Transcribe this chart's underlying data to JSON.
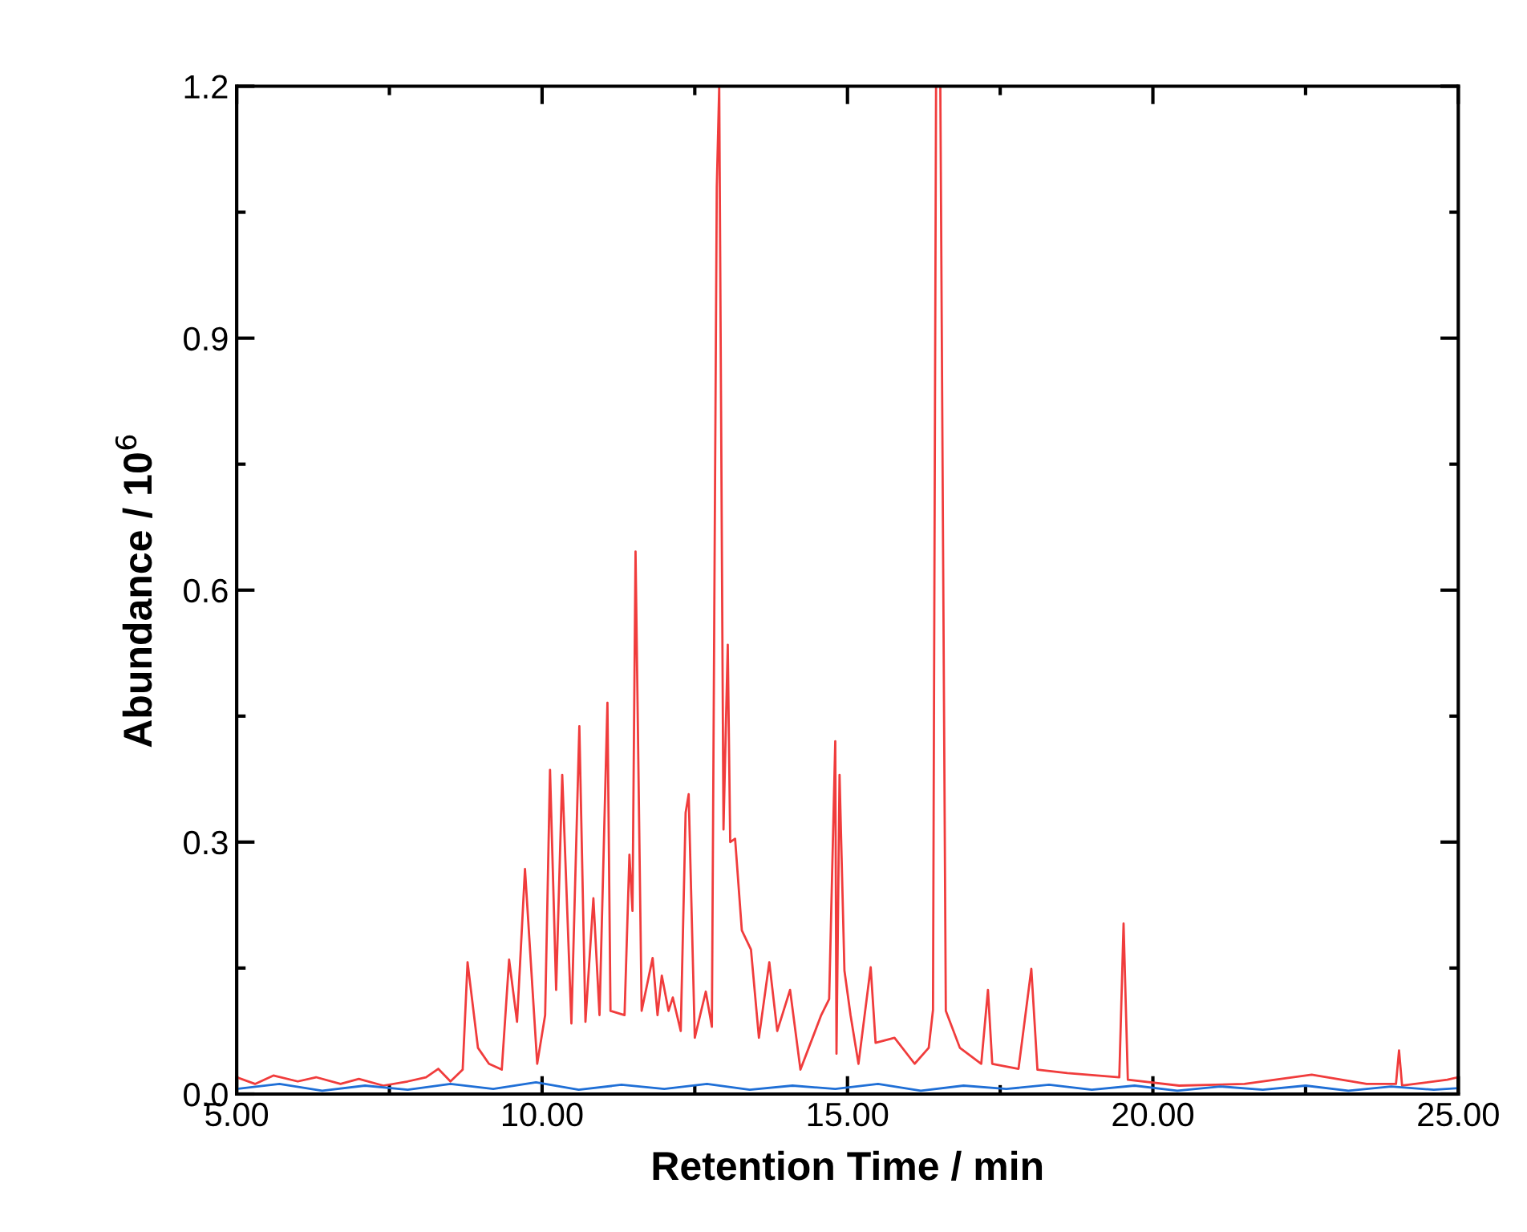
{
  "chart_data": {
    "type": "line",
    "xlabel": "Retention Time / min",
    "ylabel": "Abundance / 10$^{6}$",
    "xlim": [
      5,
      25
    ],
    "ylim": [
      0,
      1.2
    ],
    "xticks": [
      {
        "value": 5,
        "label": "5.00"
      },
      {
        "value": 7.5,
        "label": null
      },
      {
        "value": 10,
        "label": "10.00"
      },
      {
        "value": 12.5,
        "label": null
      },
      {
        "value": 15,
        "label": "15.00"
      },
      {
        "value": 17.5,
        "label": null
      },
      {
        "value": 20,
        "label": "20.00"
      },
      {
        "value": 22.5,
        "label": null
      },
      {
        "value": 25,
        "label": "25.00"
      }
    ],
    "yticks": [
      {
        "value": 0,
        "label": "0.0"
      },
      {
        "value": 0.15,
        "label": null
      },
      0.3,
      {
        "value": 0.45,
        "label": null
      },
      0.6,
      {
        "value": 0.75,
        "label": null
      },
      0.9,
      {
        "value": 1.05,
        "label": null
      },
      1.2
    ],
    "marker": "none",
    "line_style": "solid",
    "series": [
      {
        "color": "#f03c3c",
        "x": [
          5.0,
          5.3,
          5.6,
          6.0,
          6.3,
          6.7,
          7.0,
          7.4,
          7.8,
          8.1,
          8.3,
          8.5,
          8.7,
          8.78,
          8.95,
          9.13,
          9.34,
          9.46,
          9.59,
          9.72,
          9.92,
          10.05,
          10.13,
          10.23,
          10.33,
          10.48,
          10.61,
          10.71,
          10.84,
          10.94,
          11.07,
          11.12,
          11.35,
          11.43,
          11.48,
          11.53,
          11.63,
          11.81,
          11.89,
          11.96,
          12.07,
          12.14,
          12.27,
          12.35,
          12.4,
          12.5,
          12.68,
          12.78,
          12.86,
          12.9,
          12.97,
          13.04,
          13.08,
          13.16,
          13.27,
          13.42,
          13.55,
          13.72,
          13.85,
          14.06,
          14.23,
          14.57,
          14.7,
          14.8,
          14.82,
          14.87,
          14.95,
          15.05,
          15.18,
          15.38,
          15.46,
          15.77,
          16.1,
          16.33,
          16.4,
          16.45,
          16.52,
          16.61,
          16.84,
          17.19,
          17.3,
          17.37,
          17.8,
          18.01,
          18.11,
          18.6,
          19.45,
          19.52,
          19.59,
          20.43,
          21.5,
          22.6,
          23.5,
          23.98,
          24.03,
          24.08,
          24.82,
          25.0
        ],
        "values": [
          0.02,
          0.012,
          0.022,
          0.015,
          0.02,
          0.012,
          0.018,
          0.01,
          0.015,
          0.02,
          0.03,
          0.015,
          0.029,
          0.157,
          0.055,
          0.036,
          0.029,
          0.16,
          0.086,
          0.268,
          0.036,
          0.094,
          0.386,
          0.124,
          0.38,
          0.084,
          0.438,
          0.086,
          0.233,
          0.094,
          0.466,
          0.099,
          0.094,
          0.285,
          0.218,
          0.646,
          0.099,
          0.162,
          0.094,
          0.141,
          0.099,
          0.115,
          0.075,
          0.335,
          0.357,
          0.067,
          0.122,
          0.08,
          1.08,
          1.2,
          0.315,
          0.535,
          0.3,
          0.304,
          0.195,
          0.172,
          0.067,
          0.157,
          0.075,
          0.124,
          0.029,
          0.094,
          0.113,
          0.42,
          0.048,
          0.38,
          0.147,
          0.094,
          0.036,
          0.151,
          0.061,
          0.067,
          0.036,
          0.055,
          0.1,
          1.2,
          1.2,
          0.099,
          0.055,
          0.036,
          0.124,
          0.036,
          0.03,
          0.149,
          0.029,
          0.025,
          0.02,
          0.203,
          0.017,
          0.01,
          0.012,
          0.023,
          0.012,
          0.012,
          0.052,
          0.01,
          0.017,
          0.02
        ]
      },
      {
        "color": "#1f6fd6",
        "x": [
          5.0,
          5.7,
          6.4,
          7.1,
          7.8,
          8.5,
          9.2,
          9.9,
          10.6,
          11.3,
          12.0,
          12.7,
          13.4,
          14.1,
          14.8,
          15.5,
          16.2,
          16.9,
          17.6,
          18.3,
          19.0,
          19.7,
          20.4,
          21.1,
          21.8,
          22.5,
          23.2,
          23.9,
          24.6,
          25.0
        ],
        "values": [
          0.006,
          0.012,
          0.004,
          0.01,
          0.005,
          0.012,
          0.006,
          0.014,
          0.005,
          0.011,
          0.006,
          0.012,
          0.005,
          0.01,
          0.006,
          0.012,
          0.004,
          0.01,
          0.006,
          0.011,
          0.005,
          0.01,
          0.004,
          0.009,
          0.005,
          0.01,
          0.004,
          0.009,
          0.005,
          0.007
        ]
      }
    ]
  }
}
